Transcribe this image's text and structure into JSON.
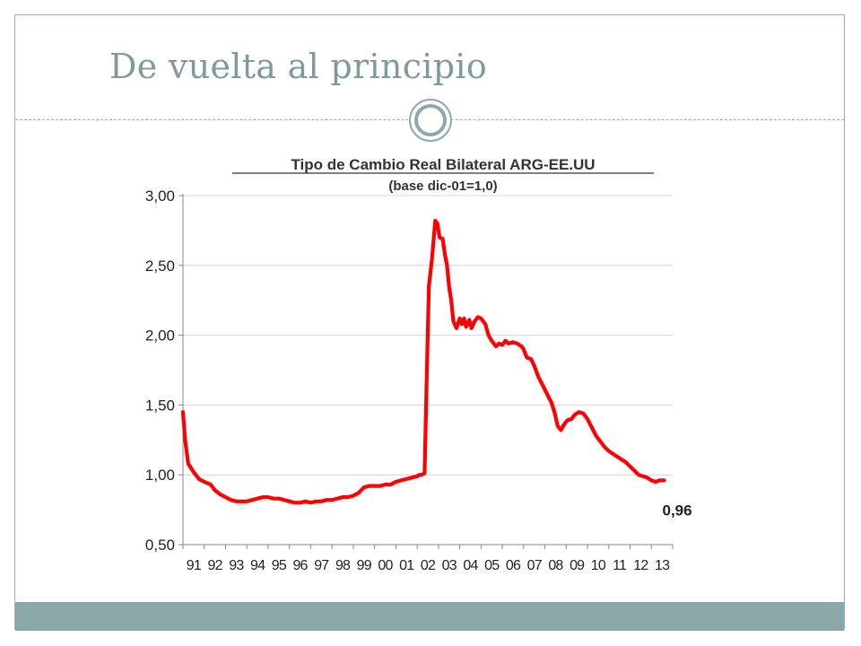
{
  "slide": {
    "title": "De vuelta al principio",
    "colors": {
      "title": "#7f9a9a",
      "accent": "#8aa8a8",
      "line": "#ff0000"
    },
    "icons": [
      "circle-ornament-icon"
    ]
  },
  "chart_data": {
    "type": "line",
    "title": "Tipo de Cambio Real Bilateral ARG-EE.UU",
    "subtitle": "(base dic-01=1,0)",
    "xlabel": "",
    "ylabel": "",
    "categories": [
      "91",
      "92",
      "93",
      "94",
      "95",
      "96",
      "97",
      "98",
      "99",
      "00",
      "01",
      "02",
      "03",
      "04",
      "05",
      "06",
      "07",
      "08",
      "09",
      "10",
      "11",
      "12",
      "13"
    ],
    "yticks": [
      "0,50",
      "1,00",
      "1,50",
      "2,00",
      "2,50",
      "3,00"
    ],
    "ylim": [
      0.5,
      3.0
    ],
    "grid": true,
    "series": [
      {
        "color": "#ff0000",
        "points": [
          [
            1991.0,
            1.45
          ],
          [
            1991.1,
            1.25
          ],
          [
            1991.25,
            1.08
          ],
          [
            1991.5,
            1.02
          ],
          [
            1991.75,
            0.97
          ],
          [
            1992.0,
            0.95
          ],
          [
            1992.3,
            0.93
          ],
          [
            1992.5,
            0.89
          ],
          [
            1992.75,
            0.86
          ],
          [
            1993.0,
            0.84
          ],
          [
            1993.25,
            0.82
          ],
          [
            1993.5,
            0.81
          ],
          [
            1993.75,
            0.81
          ],
          [
            1994.0,
            0.81
          ],
          [
            1994.25,
            0.82
          ],
          [
            1994.5,
            0.83
          ],
          [
            1994.75,
            0.84
          ],
          [
            1995.0,
            0.84
          ],
          [
            1995.25,
            0.83
          ],
          [
            1995.5,
            0.83
          ],
          [
            1995.75,
            0.82
          ],
          [
            1996.0,
            0.81
          ],
          [
            1996.25,
            0.8
          ],
          [
            1996.5,
            0.8
          ],
          [
            1996.75,
            0.81
          ],
          [
            1997.0,
            0.8
          ],
          [
            1997.25,
            0.81
          ],
          [
            1997.5,
            0.81
          ],
          [
            1997.75,
            0.82
          ],
          [
            1998.0,
            0.82
          ],
          [
            1998.25,
            0.83
          ],
          [
            1998.5,
            0.84
          ],
          [
            1998.75,
            0.84
          ],
          [
            1999.0,
            0.85
          ],
          [
            1999.25,
            0.87
          ],
          [
            1999.5,
            0.91
          ],
          [
            1999.75,
            0.92
          ],
          [
            2000.0,
            0.92
          ],
          [
            2000.25,
            0.92
          ],
          [
            2000.5,
            0.93
          ],
          [
            2000.75,
            0.93
          ],
          [
            2001.0,
            0.95
          ],
          [
            2001.25,
            0.96
          ],
          [
            2001.5,
            0.97
          ],
          [
            2001.75,
            0.98
          ],
          [
            2002.0,
            0.99
          ],
          [
            2002.1,
            1.0
          ],
          [
            2002.2,
            1.0
          ],
          [
            2002.35,
            1.01
          ],
          [
            2002.45,
            1.7
          ],
          [
            2002.55,
            2.35
          ],
          [
            2002.7,
            2.55
          ],
          [
            2002.85,
            2.82
          ],
          [
            2002.95,
            2.8
          ],
          [
            2003.05,
            2.7
          ],
          [
            2003.2,
            2.69
          ],
          [
            2003.3,
            2.58
          ],
          [
            2003.4,
            2.5
          ],
          [
            2003.5,
            2.35
          ],
          [
            2003.6,
            2.25
          ],
          [
            2003.7,
            2.1
          ],
          [
            2003.85,
            2.05
          ],
          [
            2004.0,
            2.12
          ],
          [
            2004.1,
            2.08
          ],
          [
            2004.2,
            2.12
          ],
          [
            2004.3,
            2.06
          ],
          [
            2004.45,
            2.11
          ],
          [
            2004.55,
            2.05
          ],
          [
            2004.7,
            2.1
          ],
          [
            2004.85,
            2.13
          ],
          [
            2005.0,
            2.12
          ],
          [
            2005.2,
            2.08
          ],
          [
            2005.35,
            2.0
          ],
          [
            2005.5,
            1.96
          ],
          [
            2005.7,
            1.92
          ],
          [
            2005.85,
            1.94
          ],
          [
            2006.0,
            1.93
          ],
          [
            2006.15,
            1.96
          ],
          [
            2006.3,
            1.94
          ],
          [
            2006.5,
            1.95
          ],
          [
            2006.7,
            1.94
          ],
          [
            2006.9,
            1.92
          ],
          [
            2007.0,
            1.9
          ],
          [
            2007.15,
            1.84
          ],
          [
            2007.35,
            1.83
          ],
          [
            2007.5,
            1.78
          ],
          [
            2007.7,
            1.7
          ],
          [
            2007.9,
            1.64
          ],
          [
            2008.1,
            1.58
          ],
          [
            2008.3,
            1.52
          ],
          [
            2008.45,
            1.45
          ],
          [
            2008.6,
            1.35
          ],
          [
            2008.75,
            1.32
          ],
          [
            2008.9,
            1.36
          ],
          [
            2009.05,
            1.39
          ],
          [
            2009.25,
            1.4
          ],
          [
            2009.4,
            1.43
          ],
          [
            2009.6,
            1.45
          ],
          [
            2009.8,
            1.44
          ],
          [
            2010.0,
            1.4
          ],
          [
            2010.2,
            1.34
          ],
          [
            2010.4,
            1.28
          ],
          [
            2010.6,
            1.24
          ],
          [
            2010.8,
            1.2
          ],
          [
            2011.0,
            1.17
          ],
          [
            2011.2,
            1.15
          ],
          [
            2011.4,
            1.13
          ],
          [
            2011.6,
            1.11
          ],
          [
            2011.8,
            1.09
          ],
          [
            2012.0,
            1.06
          ],
          [
            2012.2,
            1.03
          ],
          [
            2012.4,
            1.0
          ],
          [
            2012.6,
            0.99
          ],
          [
            2012.8,
            0.98
          ],
          [
            2013.0,
            0.96
          ],
          [
            2013.2,
            0.95
          ],
          [
            2013.4,
            0.96
          ],
          [
            2013.6,
            0.96
          ]
        ]
      }
    ],
    "annotations": [
      {
        "text": "0,96",
        "x": 2013.6,
        "y": 0.96
      }
    ]
  }
}
